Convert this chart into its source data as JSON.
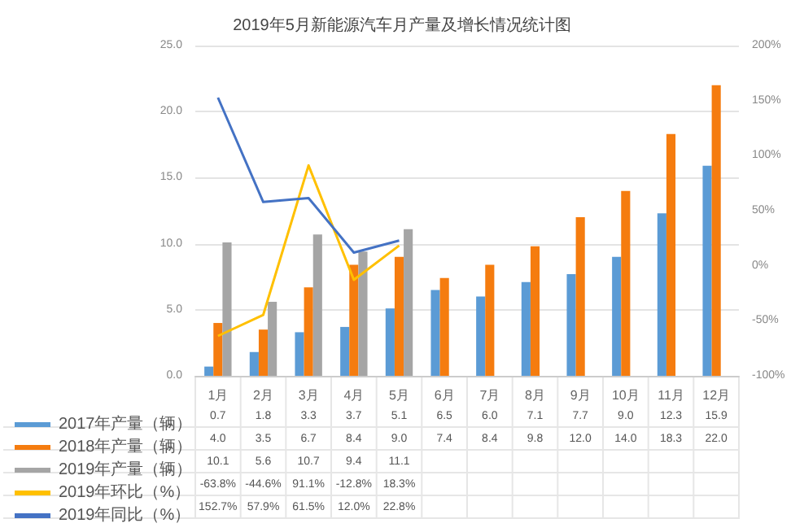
{
  "chart_data": {
    "type": "bar",
    "title": "2019年5月新能源汽车月产量及增长情况统计图",
    "categories": [
      "1月",
      "2月",
      "3月",
      "4月",
      "5月",
      "6月",
      "7月",
      "8月",
      "9月",
      "10月",
      "11月",
      "12月"
    ],
    "series": [
      {
        "name": "2017年产量（辆）",
        "color": "#5b9bd5",
        "values": [
          0.7,
          1.8,
          3.3,
          3.7,
          5.1,
          6.5,
          6.0,
          7.1,
          7.7,
          9.0,
          12.3,
          15.9
        ],
        "value_labels": [
          "0.7",
          "1.8",
          "3.3",
          "3.7",
          "5.1",
          "6.5",
          "6.0",
          "7.1",
          "7.7",
          "9.0",
          "12.3",
          "15.9"
        ]
      },
      {
        "name": "2018年产量（辆）",
        "color": "#f57c0f",
        "values": [
          4.0,
          3.5,
          6.7,
          8.4,
          9.0,
          7.4,
          8.4,
          9.8,
          12.0,
          14.0,
          18.3,
          22.0
        ],
        "value_labels": [
          "4.0",
          "3.5",
          "6.7",
          "8.4",
          "9.0",
          "7.4",
          "8.4",
          "9.8",
          "12.0",
          "14.0",
          "18.3",
          "22.0"
        ]
      },
      {
        "name": "2019年产量（辆）",
        "color": "#a5a5a5",
        "values": [
          10.1,
          5.6,
          10.7,
          9.4,
          11.1,
          null,
          null,
          null,
          null,
          null,
          null,
          null
        ],
        "value_labels": [
          "10.1",
          "5.6",
          "10.7",
          "9.4",
          "11.1",
          null,
          null,
          null,
          null,
          null,
          null,
          null
        ]
      },
      {
        "name": "2019年环比（%）",
        "type": "line",
        "axis": "y2",
        "color": "#ffc000",
        "values": [
          -63.8,
          -44.6,
          91.1,
          -12.8,
          18.3,
          null,
          null,
          null,
          null,
          null,
          null,
          null
        ],
        "value_labels": [
          "-63.8%",
          "-44.6%",
          "91.1%",
          "-12.8%",
          "18.3%",
          null,
          null,
          null,
          null,
          null,
          null,
          null
        ]
      },
      {
        "name": "2019年同比（%）",
        "type": "line",
        "axis": "y2",
        "color": "#4472c4",
        "values": [
          152.7,
          57.9,
          61.5,
          12.0,
          22.8,
          null,
          null,
          null,
          null,
          null,
          null,
          null
        ],
        "value_labels": [
          "152.7%",
          "57.9%",
          "61.5%",
          "12.0%",
          "22.8%",
          null,
          null,
          null,
          null,
          null,
          null,
          null
        ]
      }
    ],
    "ylim": [
      0,
      25
    ],
    "yticks": [
      {
        "value": 0,
        "label": "0.0"
      },
      {
        "value": 5,
        "label": "5.0"
      },
      {
        "value": 10,
        "label": "10.0"
      },
      {
        "value": 15,
        "label": "15.0"
      },
      {
        "value": 20,
        "label": "20.0"
      },
      {
        "value": 25,
        "label": "25.0"
      }
    ],
    "y2lim": [
      -100,
      200
    ],
    "y2ticks": [
      {
        "value": -100,
        "label": "-100%"
      },
      {
        "value": -50,
        "label": "-50%"
      },
      {
        "value": 0,
        "label": "0%"
      },
      {
        "value": 50,
        "label": "50%"
      },
      {
        "value": 100,
        "label": "100%"
      },
      {
        "value": 150,
        "label": "150%"
      },
      {
        "value": 200,
        "label": "200%"
      }
    ],
    "grid": "y",
    "legend": "bottom left",
    "marker": "none"
  }
}
